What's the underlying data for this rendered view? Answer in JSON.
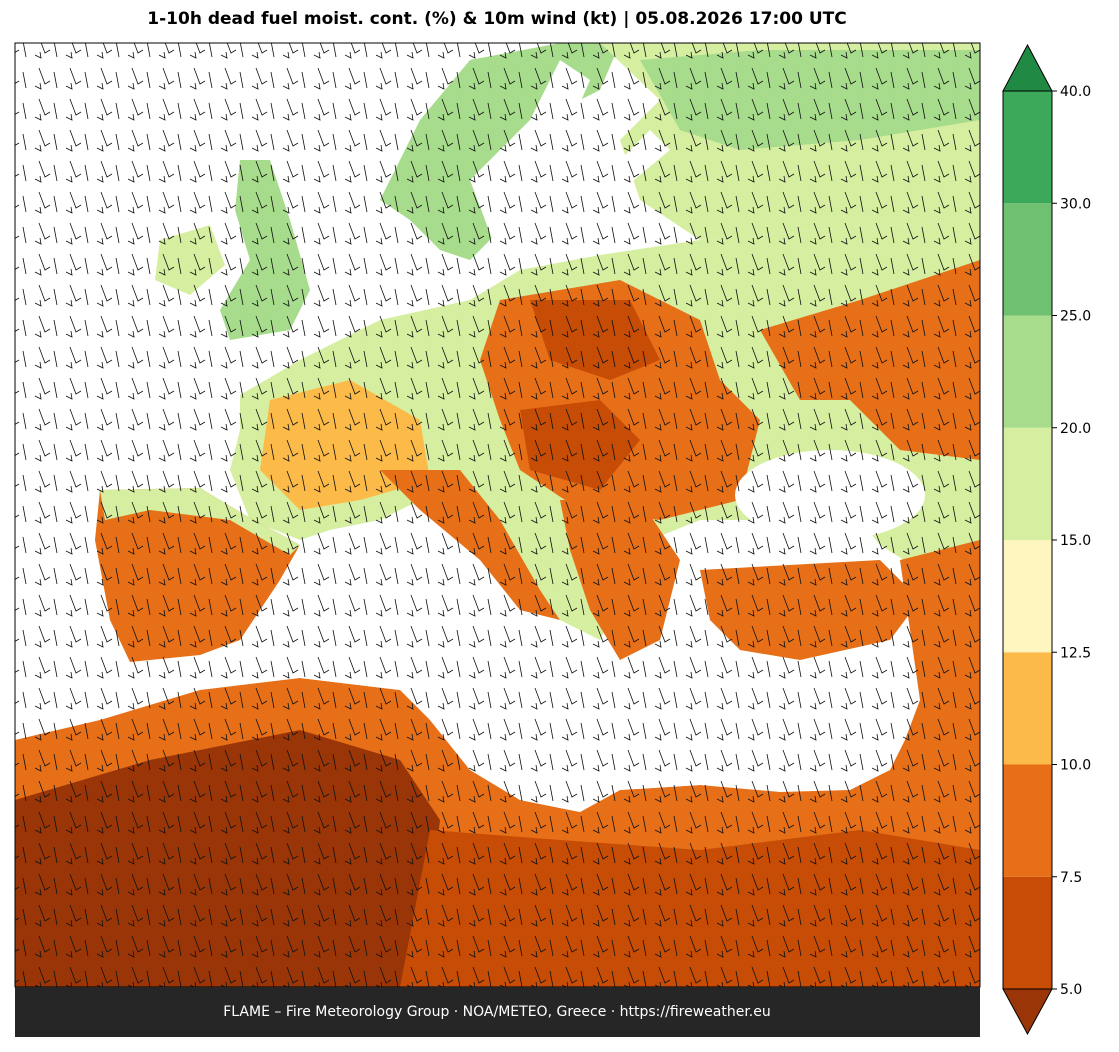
{
  "title": "1-10h dead fuel moist. cont. (%) & 10m wind (kt)  |  05.08.2026 17:00 UTC",
  "footer": "FLAME – Fire Meteorology Group · NOA/METEO, Greece · https://fireweather.eu",
  "colorbar": {
    "ticks": [
      {
        "value": 5,
        "label": "5.0"
      },
      7.5,
      {
        "value": 10,
        "label": "10.0"
      },
      12.5,
      {
        "value": 15,
        "label": "15.0"
      },
      {
        "value": 20,
        "label": "20.0"
      },
      {
        "value": 25,
        "label": "25.0"
      },
      {
        "value": 30,
        "label": "30.0"
      },
      {
        "value": 40,
        "label": "40.0"
      }
    ],
    "colors": [
      "#c74c05",
      "#e66f18",
      "#fcba48",
      "#fff5bf",
      "#d6eea0",
      "#a6dc8b",
      "#70c071",
      "#3ca95a"
    ],
    "under_color": "#9a3508",
    "over_color": "#208a45"
  }
}
